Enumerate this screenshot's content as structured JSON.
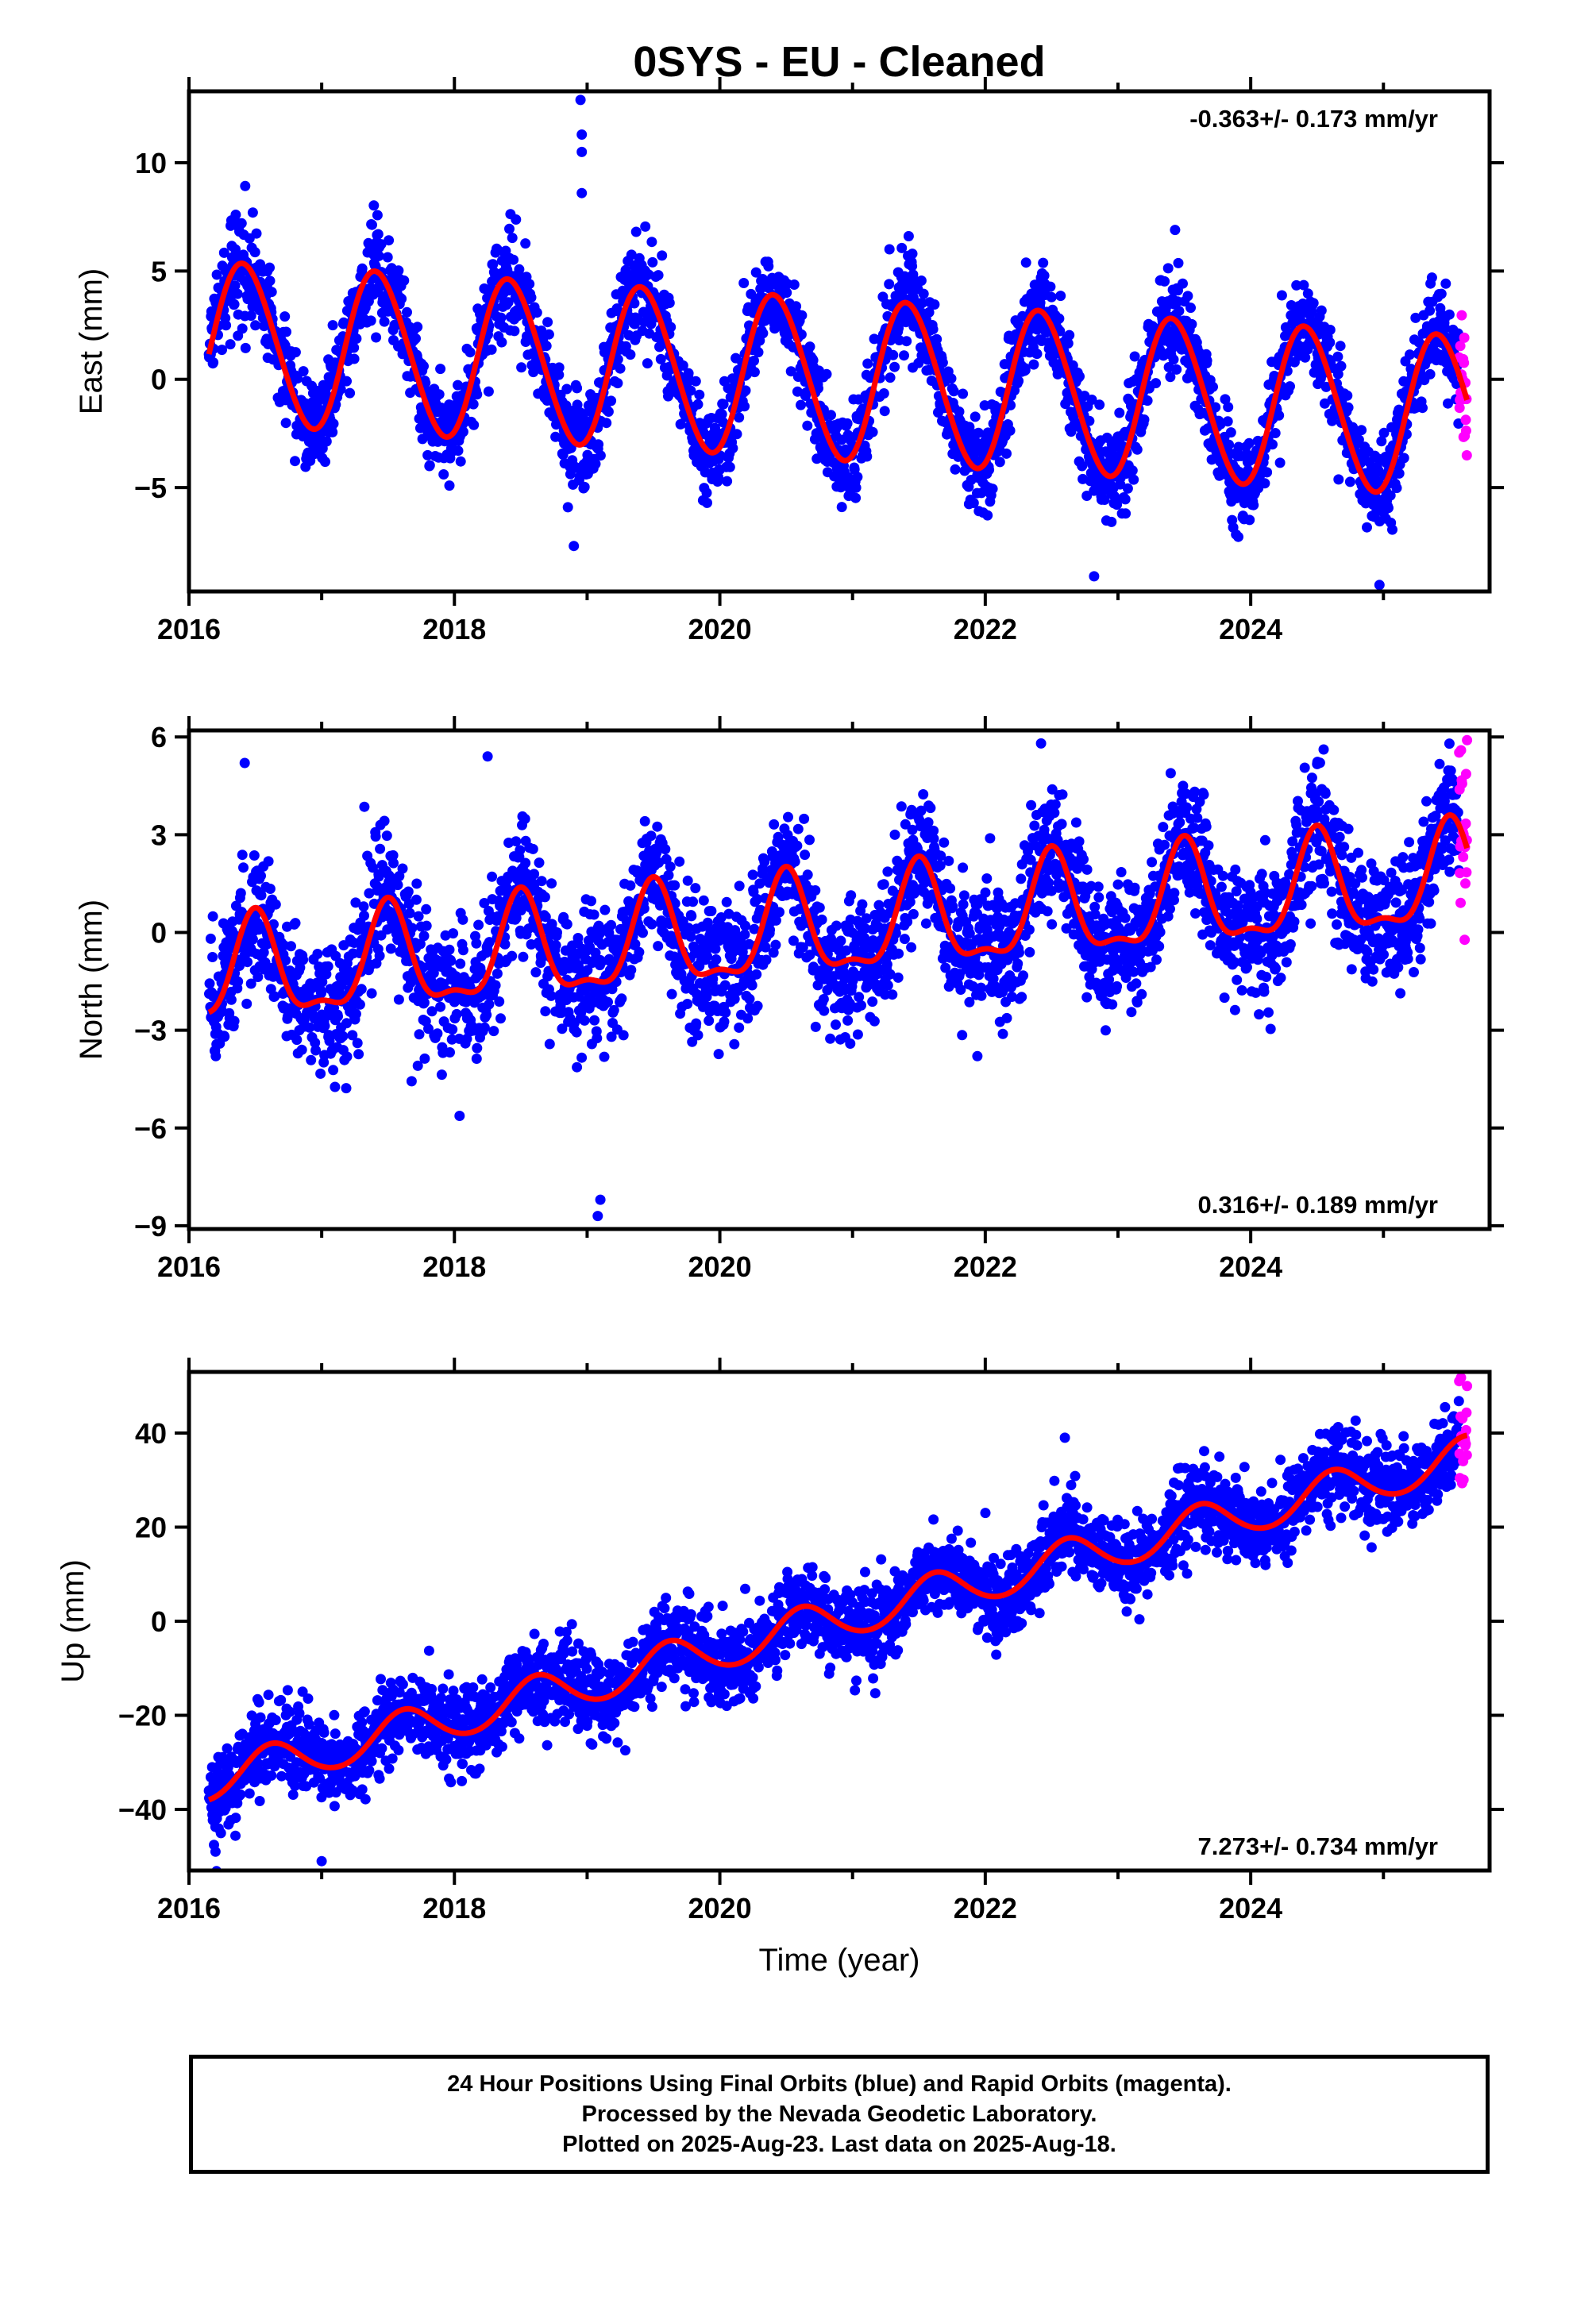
{
  "title": "0SYS  - EU - Cleaned",
  "colors": {
    "final": "#0000ff",
    "rapid": "#ff00ff",
    "model": "#ff0000",
    "axis": "#000000"
  },
  "xlabel": "Time (year)",
  "caption": {
    "line1": "24 Hour Positions Using Final Orbits (blue) and Rapid Orbits (magenta).",
    "line2": "Processed by the Nevada Geodetic Laboratory.",
    "line3": "Plotted on 2025-Aug-23. Last data on 2025-Aug-18."
  },
  "chart_data": [
    {
      "type": "scatter",
      "ylabel": "East (mm)",
      "xlim": [
        2016.0,
        2025.8
      ],
      "ylim": [
        -9.8,
        13.3
      ],
      "xticks": [
        2016,
        2018,
        2020,
        2022,
        2024
      ],
      "yticks": [
        -5,
        0,
        5,
        10
      ],
      "rate": "-0.363+/- 0.173 mm/yr",
      "rate_position": "top-right",
      "data_start": 2016.15,
      "data_end": 2025.63,
      "rapid_start": 2025.57,
      "model": {
        "offset": 1.7,
        "trend_mm_per_yr": -0.363,
        "annual_amplitude": 3.7,
        "annual_peak_phase": 0.42,
        "semiannual_amplitude": 0.25,
        "semiannual_peak_phase": 0.3
      },
      "scatter_sigma": 1.1,
      "outliers": [
        {
          "x": 2018.95,
          "y": 12.9
        },
        {
          "x": 2018.96,
          "y": 11.3
        },
        {
          "x": 2018.96,
          "y": 10.5
        },
        {
          "x": 2018.96,
          "y": 8.6
        },
        {
          "x": 2018.9,
          "y": -7.7
        },
        {
          "x": 2022.82,
          "y": -9.1
        },
        {
          "x": 2024.97,
          "y": -9.5
        }
      ]
    },
    {
      "type": "scatter",
      "ylabel": "North (mm)",
      "xlim": [
        2016.0,
        2025.8
      ],
      "ylim": [
        -9.1,
        6.2
      ],
      "xticks": [
        2016,
        2018,
        2020,
        2022,
        2024
      ],
      "yticks": [
        -9,
        -6,
        -3,
        0,
        3,
        6
      ],
      "rate": "0.316+/- 0.189 mm/yr",
      "rate_position": "bottom-right",
      "data_start": 2016.15,
      "data_end": 2025.63,
      "rapid_start": 2025.57,
      "model": {
        "offset": -1.4,
        "trend_mm_per_yr": 0.316,
        "annual_amplitude": 1.5,
        "annual_peak_phase": 0.5,
        "semiannual_amplitude": 0.55,
        "semiannual_peak_phase": 0.5
      },
      "scatter_sigma": 1.0,
      "outliers": [
        {
          "x": 2016.42,
          "y": 5.2
        },
        {
          "x": 2018.25,
          "y": 5.4
        },
        {
          "x": 2019.08,
          "y": -8.7
        },
        {
          "x": 2019.1,
          "y": -8.2
        },
        {
          "x": 2022.42,
          "y": 5.8
        },
        {
          "x": 2025.63,
          "y": 5.9
        }
      ]
    },
    {
      "type": "scatter",
      "ylabel": "Up (mm)",
      "xlim": [
        2016.0,
        2025.8
      ],
      "ylim": [
        -53,
        53
      ],
      "xticks": [
        2016,
        2018,
        2020,
        2022,
        2024
      ],
      "yticks": [
        -40,
        -20,
        0,
        20,
        40
      ],
      "rate": "7.273+/- 0.734 mm/yr",
      "rate_position": "bottom-right",
      "data_start": 2016.15,
      "data_end": 2025.63,
      "rapid_start": 2025.57,
      "model": {
        "offset": -34.0,
        "trend_mm_per_yr": 7.273,
        "annual_amplitude": 4.3,
        "annual_peak_phase": 0.62,
        "semiannual_amplitude": 0.3,
        "semiannual_peak_phase": 0.6
      },
      "scatter_sigma": 4.5,
      "outliers": [
        {
          "x": 2016.2,
          "y": -49
        },
        {
          "x": 2017.0,
          "y": -51
        },
        {
          "x": 2022.6,
          "y": 39
        },
        {
          "x": 2025.63,
          "y": 50
        }
      ]
    }
  ]
}
